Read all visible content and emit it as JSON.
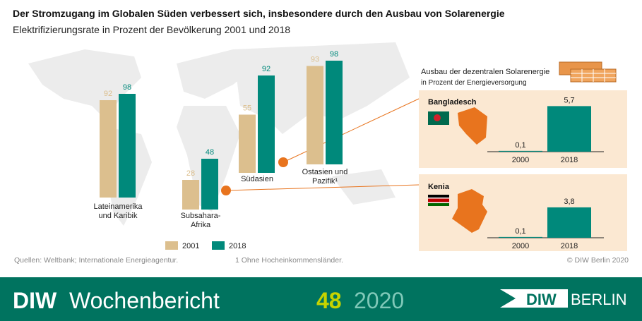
{
  "title": "Der Stromzugang im Globalen Süden verbessert sich, insbesondere durch den Ausbau von Solarenergie",
  "subtitle": "Elektrifizierungsrate in Prozent der Bevölkerung 2001 und 2018",
  "solar_title": "Ausbau der dezentralen Solarenergie",
  "solar_subtitle": "in Prozent der Energieversorgung",
  "chart_data": [
    {
      "type": "bar",
      "categories": [
        "Lateinamerika und Karibik",
        "Subsahara-Afrika",
        "Südasien",
        "Ostasien und Pazifik¹"
      ],
      "series": [
        {
          "name": "2001",
          "color": "#dcbf8e",
          "values": [
            92,
            28,
            55,
            93
          ]
        },
        {
          "name": "2018",
          "color": "#00897b",
          "values": [
            98,
            48,
            92,
            98
          ]
        }
      ],
      "ylim": [
        0,
        100
      ]
    },
    {
      "type": "bar",
      "title": "Bangladesch",
      "categories": [
        "2000",
        "2018"
      ],
      "values": [
        0.1,
        5.7
      ],
      "value_labels": [
        "0,1",
        "5,7"
      ],
      "color": "#00897b",
      "ylim": [
        0,
        6
      ]
    },
    {
      "type": "bar",
      "title": "Kenia",
      "categories": [
        "2000",
        "2018"
      ],
      "values": [
        0.1,
        3.8
      ],
      "value_labels": [
        "0,1",
        "3,8"
      ],
      "color": "#00897b",
      "ylim": [
        0,
        6
      ]
    }
  ],
  "sources": "Quellen: Weltbank; Internationale Energieagentur.",
  "footnote": "1 Ohne Hocheinkommensländer.",
  "copyright": "© DIW Berlin 2020",
  "footer": {
    "brand": "DIW",
    "publication": "Wochenbericht",
    "issue": "48",
    "year": "2020",
    "logo": "DIW",
    "logo_city": "BERLIN"
  }
}
